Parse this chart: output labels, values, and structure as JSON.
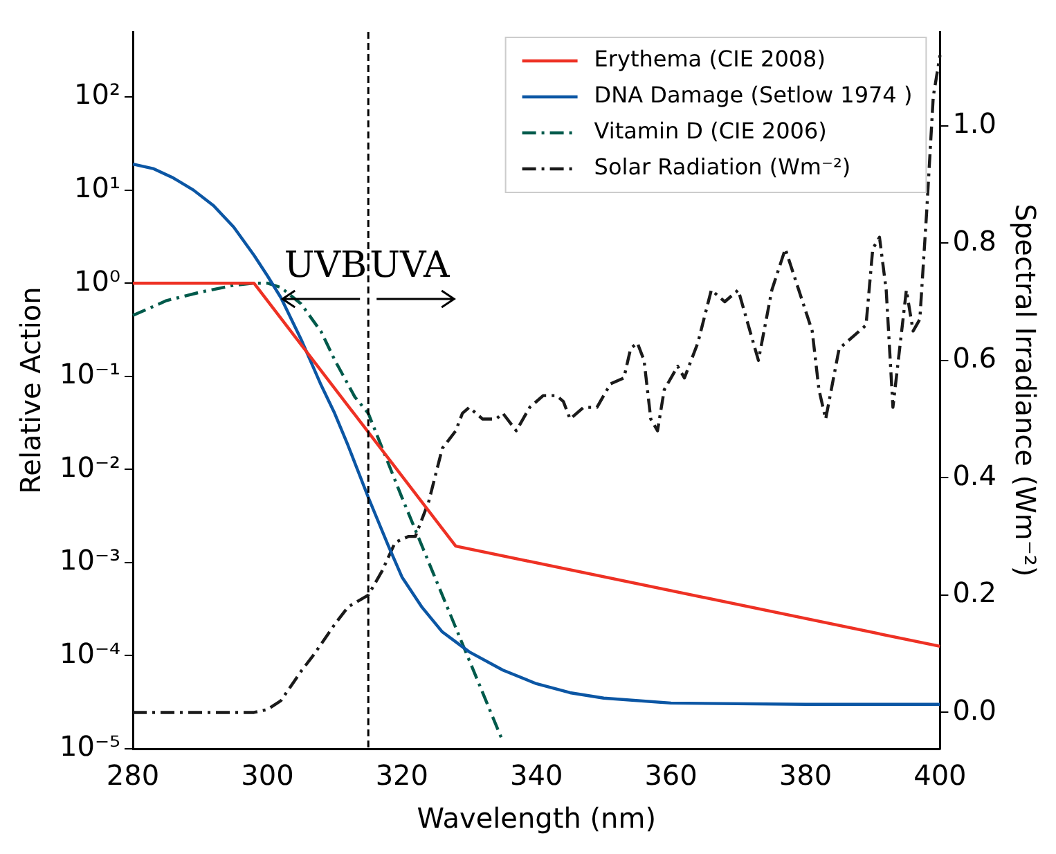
{
  "chart_data": {
    "type": "line",
    "xlabel": "Wavelength (nm)",
    "ylabel": "Relative Action",
    "y2label": "Spectral Irradiance (Wm⁻²)",
    "log": "y",
    "grid": false,
    "legend": "top right",
    "marker": "none",
    "xlim": [
      280,
      400
    ],
    "xticks": [
      280,
      300,
      320,
      340,
      360,
      380,
      400
    ],
    "ylim": [
      1e-05,
      500
    ],
    "yticks": [
      {
        "value": 1e-05,
        "label": "10⁻⁵"
      },
      {
        "value": 0.0001,
        "label": "10⁻⁴"
      },
      {
        "value": 0.001,
        "label": "10⁻³"
      },
      {
        "value": 0.01,
        "label": "10⁻²"
      },
      {
        "value": 0.1,
        "label": "10⁻¹"
      },
      {
        "value": 1,
        "label": "10⁰"
      },
      {
        "value": 10,
        "label": "10¹"
      },
      {
        "value": 100,
        "label": "10²"
      }
    ],
    "y2lim": [
      -0.062,
      1.16
    ],
    "y2ticks": [
      {
        "value": 0,
        "label": "0.0"
      },
      {
        "value": 0.2,
        "label": "0.2"
      },
      {
        "value": 0.4,
        "label": "0.4"
      },
      {
        "value": 0.6,
        "label": "0.6"
      },
      {
        "value": 0.8,
        "label": "0.8"
      },
      {
        "value": 1,
        "label": "1.0"
      }
    ],
    "ref_lines": [
      {
        "axis": "x",
        "value": 315,
        "color": "#000000",
        "line_style": "dashed"
      }
    ],
    "annotations": [
      "UVB",
      "UVA"
    ],
    "series": [
      {
        "name": "Erythema (CIE 2008)",
        "color": "#ee3124",
        "line_style": "solid",
        "x": [
          280,
          298,
          328,
          400
        ],
        "values": [
          1,
          1,
          0.0015,
          0.000126
        ]
      },
      {
        "name": "DNA Damage (Setlow 1974 )",
        "color": "#0b56a4",
        "line_style": "solid",
        "x": [
          280,
          283,
          286,
          289,
          292,
          295,
          298,
          300,
          302,
          305,
          308,
          310,
          312,
          315,
          318,
          320,
          323,
          326,
          330,
          335,
          340,
          345,
          350,
          360,
          380,
          400
        ],
        "values": [
          19,
          17,
          13.5,
          10,
          6.8,
          4,
          2,
          1.2,
          0.7,
          0.25,
          0.08,
          0.04,
          0.018,
          0.005,
          0.0015,
          0.0007,
          0.00033,
          0.00018,
          0.00011,
          7e-05,
          5e-05,
          4e-05,
          3.5e-05,
          3.1e-05,
          3e-05,
          3e-05
        ]
      },
      {
        "name": "Vitamin D (CIE 2006)",
        "color": "#005a4b",
        "line_style": "dashed",
        "x": [
          280,
          285,
          290,
          295,
          298,
          300,
          302,
          305,
          308,
          310,
          313,
          315,
          320,
          328,
          335
        ],
        "values": [
          0.45,
          0.65,
          0.8,
          0.95,
          1,
          1,
          0.9,
          0.6,
          0.3,
          0.15,
          0.06,
          0.04,
          0.005,
          0.0002,
          1.2e-05
        ]
      },
      {
        "name": "Solar Radiation (Wm⁻²)",
        "color": "#1a1a1a",
        "line_style": "dashed",
        "axis": "y2",
        "x": [
          280,
          298,
          300,
          302,
          305,
          307,
          310,
          312,
          315,
          317,
          319,
          321,
          322,
          324,
          326,
          328,
          329,
          330,
          332,
          334,
          335,
          337,
          339,
          341,
          343,
          344,
          345,
          347,
          349,
          351,
          353,
          354,
          355,
          356,
          357,
          358,
          359,
          361,
          362,
          364,
          366,
          368,
          370,
          371,
          373,
          375,
          377,
          379,
          381,
          382,
          383,
          385,
          387,
          389,
          390,
          391,
          392,
          393,
          395,
          396,
          397,
          398,
          399,
          400
        ],
        "values": [
          0,
          0,
          0.005,
          0.02,
          0.07,
          0.1,
          0.15,
          0.18,
          0.2,
          0.24,
          0.29,
          0.3,
          0.3,
          0.36,
          0.45,
          0.48,
          0.51,
          0.52,
          0.5,
          0.5,
          0.51,
          0.48,
          0.52,
          0.54,
          0.54,
          0.53,
          0.5,
          0.52,
          0.52,
          0.56,
          0.57,
          0.62,
          0.63,
          0.6,
          0.5,
          0.48,
          0.55,
          0.59,
          0.57,
          0.63,
          0.72,
          0.7,
          0.72,
          0.68,
          0.6,
          0.72,
          0.79,
          0.72,
          0.65,
          0.55,
          0.5,
          0.62,
          0.64,
          0.66,
          0.79,
          0.81,
          0.72,
          0.52,
          0.72,
          0.65,
          0.67,
          0.85,
          1.05,
          1.12
        ]
      }
    ]
  }
}
